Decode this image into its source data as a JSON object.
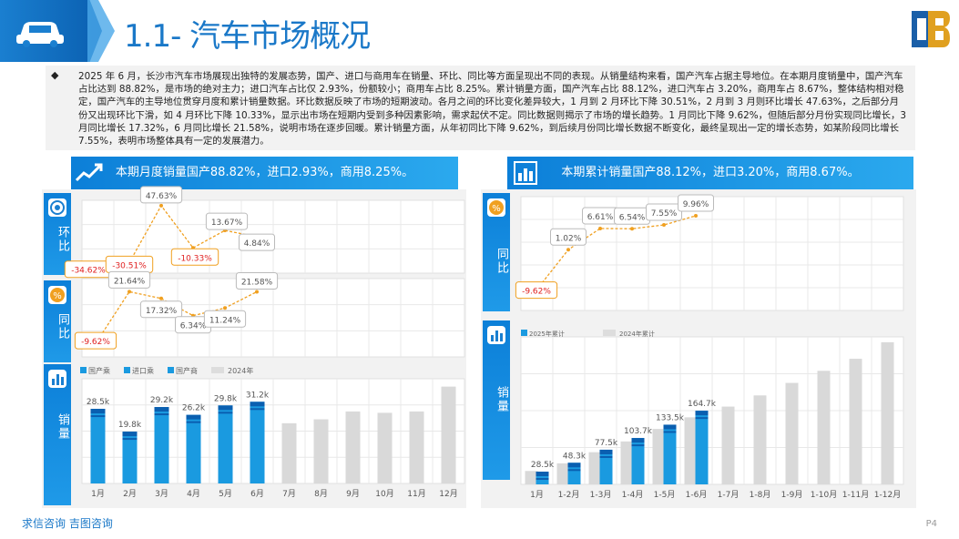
{
  "header": {
    "title": "1.1- 汽车市场概况"
  },
  "intro": {
    "text": "2025 年 6 月，长沙市汽车市场展现出独特的发展态势，国产、进口与商用车在销量、环比、同比等方面呈现出不同的表现。从销量结构来看，国产汽车占据主导地位。在本期月度销量中，国产汽车占比达到 88.82%，是市场的绝对主力；进口汽车占比仅 2.93%，份额较小；商用车占比 8.25%。累计销量方面，国产汽车占比 88.12%，进口汽车占 3.20%，商用车占 8.67%，整体结构相对稳定，国产汽车的主导地位贯穿月度和累计销量数据。环比数据反映了市场的短期波动。各月之间的环比变化差异较大，1 月到 2 月环比下降 30.51%，2 月到 3 月则环比增长 47.63%，之后部分月份又出现环比下滑，如 4 月环比下降 10.33%，显示出市场在短期内受到多种因素影响，需求起伏不定。同比数据则揭示了市场的增长趋势。1 月同比下降 9.62%，但随后部分月份实现同比增长，3 月同比增长 17.32%，6 月同比增长 21.58%，说明市场在逐步回暖。累计销量方面，从年初同比下降 9.62%，到后续月份同比增长数据不断变化，最终呈现出一定的增长态势，如某阶段同比增长 7.55%，表明市场整体具有一定的发展潜力。"
  },
  "left_band": "本期月度销量国产88.82%，进口2.93%，商用8.25%。",
  "right_band": "本期累计销量国产88.12%，进口3.20%，商用8.67%。",
  "side_labels": {
    "mom": "环比",
    "yoy": "同比",
    "sales": "销量"
  },
  "chart_data": [
    {
      "type": "line",
      "title": "环比",
      "x": [
        "1月",
        "2月",
        "3月",
        "4月",
        "5月",
        "6月"
      ],
      "values": [
        -34.62,
        -30.51,
        47.63,
        -10.33,
        13.67,
        4.84
      ],
      "labels": [
        "-34.62%",
        "-30.51%",
        "47.63%",
        "-10.33%",
        "13.67%",
        "4.84%"
      ]
    },
    {
      "type": "line",
      "title": "同比",
      "x": [
        "1月",
        "2月",
        "3月",
        "4月",
        "5月",
        "6月"
      ],
      "values": [
        -9.62,
        21.64,
        17.32,
        6.34,
        11.24,
        21.58
      ],
      "labels": [
        "-9.62%",
        "21.64%",
        "17.32%",
        "6.34%",
        "11.24%",
        "21.58%"
      ]
    },
    {
      "type": "bar",
      "title": "销量",
      "categories": [
        "1月",
        "2月",
        "3月",
        "4月",
        "5月",
        "6月",
        "7月",
        "8月",
        "9月",
        "10月",
        "11月",
        "12月"
      ],
      "legend": [
        "国产乘",
        "进口乘",
        "国产商",
        "2024年"
      ],
      "series": [
        {
          "name": "2025",
          "values": [
            28.5,
            19.8,
            29.2,
            26.2,
            29.8,
            31.2
          ]
        },
        {
          "name": "2024年",
          "values": [
            25.0,
            17.5,
            25.5,
            23.8,
            26.8,
            26.0,
            23.0,
            24.5,
            27.5,
            27.0,
            27.5,
            37.0
          ]
        }
      ],
      "labels": [
        "28.5k",
        "19.8k",
        "29.2k",
        "26.2k",
        "29.8k",
        "31.2k"
      ]
    },
    {
      "type": "line",
      "title": "同比",
      "x": [
        "1月",
        "1-2月",
        "1-3月",
        "1-4月",
        "1-5月",
        "1-6月"
      ],
      "values": [
        -9.62,
        1.02,
        6.61,
        6.54,
        7.55,
        9.96
      ],
      "labels": [
        "-9.62%",
        "1.02%",
        "6.61%",
        "6.54%",
        "7.55%",
        "9.96%"
      ]
    },
    {
      "type": "bar",
      "title": "销量",
      "categories": [
        "1月",
        "1-2月",
        "1-3月",
        "1-4月",
        "1-5月",
        "1-6月",
        "1-7月",
        "1-8月",
        "1-9月",
        "1-10月",
        "1-11月",
        "1-12月"
      ],
      "legend": [
        "2025年累计",
        "2024年累计"
      ],
      "series": [
        {
          "name": "2025年累计",
          "values": [
            28.5,
            48.3,
            77.5,
            103.7,
            133.5,
            164.7
          ]
        },
        {
          "name": "2024年累计",
          "values": [
            30,
            47,
            72,
            96,
            124,
            150,
            174,
            199,
            227,
            254,
            281,
            318
          ]
        }
      ],
      "labels": [
        "28.5k",
        "48.3k",
        "77.5k",
        "103.7k",
        "133.5k",
        "164.7k"
      ]
    }
  ],
  "colors": {
    "primary": "#1a7fd0",
    "accent": "#f0a020",
    "bar_current": "#1a9ae0",
    "bar_dark": "#0a5fb0",
    "bar_prev": "#d9d9d9",
    "negative": "#e02020"
  },
  "footer": {
    "link": "求信咨询  吉图咨询",
    "page": "P4"
  }
}
